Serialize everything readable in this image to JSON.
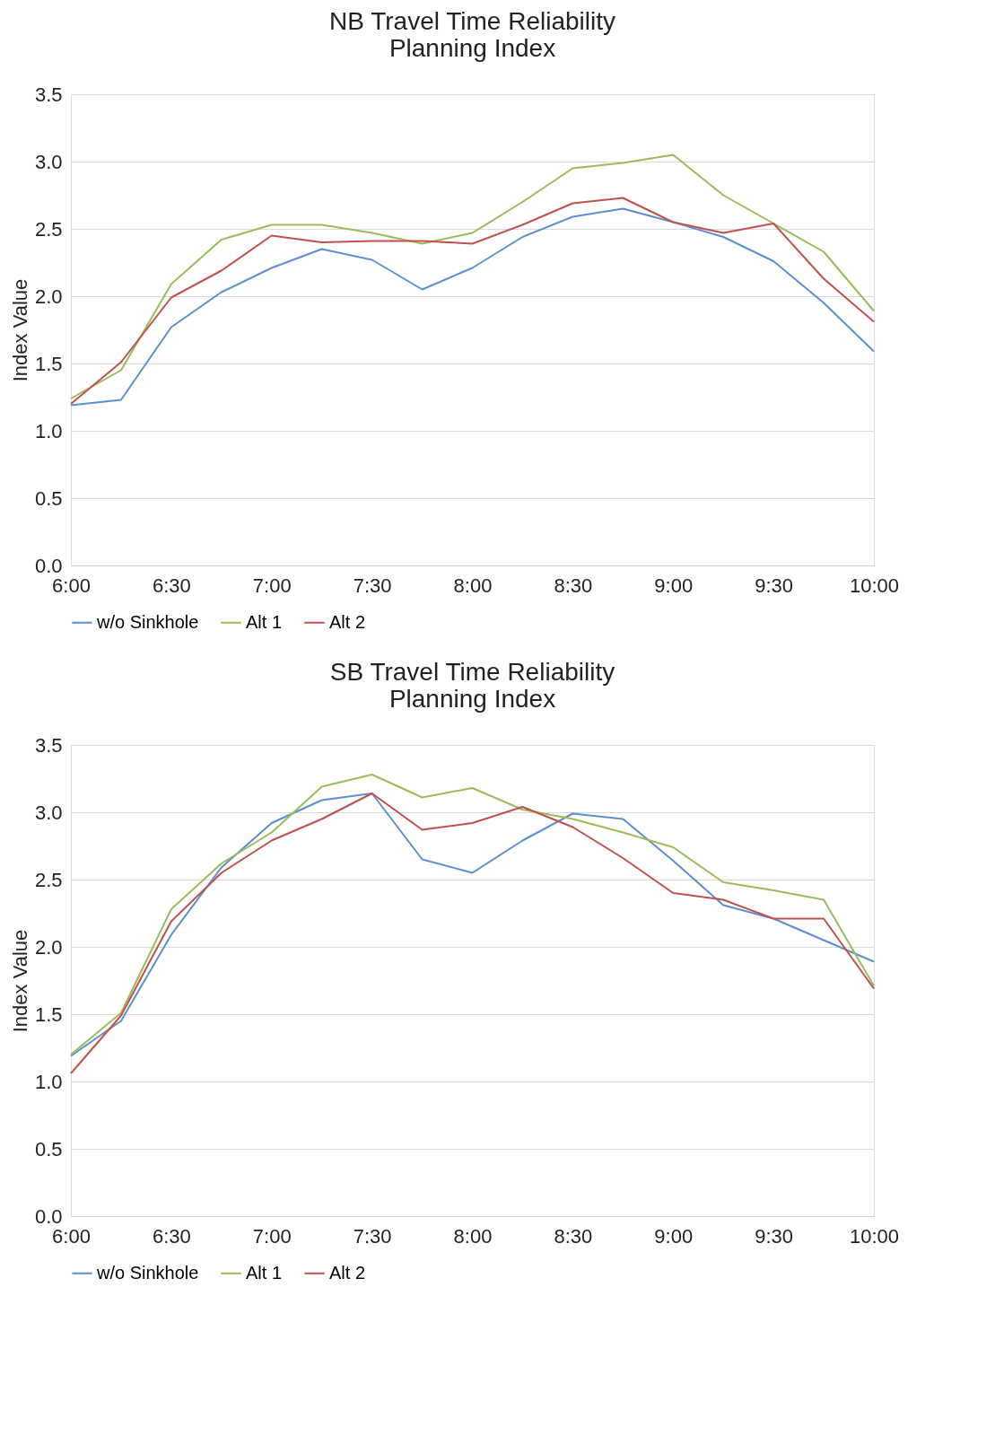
{
  "chart_data": [
    {
      "type": "line",
      "title": "NB Travel Time Reliability\nPlanning Index",
      "ylabel": "Index Value",
      "x": [
        6,
        6.25,
        6.5,
        6.75,
        7,
        7.25,
        7.5,
        7.75,
        8,
        8.25,
        8.5,
        8.75,
        9,
        9.25,
        9.5,
        9.75,
        10
      ],
      "xlim": [
        6,
        10
      ],
      "xticks": [
        {
          "value": 6,
          "label": "6:00"
        },
        {
          "value": 6.5,
          "label": "6:30"
        },
        {
          "value": 7,
          "label": "7:00"
        },
        {
          "value": 7.5,
          "label": "7:30"
        },
        {
          "value": 8,
          "label": "8:00"
        },
        {
          "value": 8.5,
          "label": "8:30"
        },
        {
          "value": 9,
          "label": "9:00"
        },
        {
          "value": 9.5,
          "label": "9:30"
        },
        {
          "value": 10,
          "label": "10:00"
        }
      ],
      "ylim": [
        0,
        3.5
      ],
      "yticks": [
        {
          "value": 0,
          "label": "0.0"
        },
        {
          "value": 0.5,
          "label": "0.5"
        },
        {
          "value": 1,
          "label": "1.0"
        },
        {
          "value": 1.5,
          "label": "1.5"
        },
        {
          "value": 2,
          "label": "2.0"
        },
        {
          "value": 2.5,
          "label": "2.5"
        },
        {
          "value": 3,
          "label": "3.0"
        },
        {
          "value": 3.5,
          "label": "3.5"
        }
      ],
      "grid": "y",
      "legend": "bottom",
      "marker": "none",
      "line_style": "solid",
      "series": [
        {
          "name": "w/o Sinkhole",
          "color": "#5b8fd0",
          "values": [
            1.19,
            1.23,
            1.77,
            2.03,
            2.21,
            2.35,
            2.27,
            2.05,
            2.21,
            2.44,
            2.59,
            2.65,
            2.55,
            2.44,
            2.26,
            1.95,
            1.59
          ]
        },
        {
          "name": "Alt 1",
          "color": "#9bbb59",
          "values": [
            1.24,
            1.45,
            2.09,
            2.42,
            2.53,
            2.53,
            2.47,
            2.39,
            2.47,
            2.7,
            2.95,
            2.99,
            3.05,
            2.75,
            2.54,
            2.33,
            1.89
          ]
        },
        {
          "name": "Alt 2",
          "color": "#c0504d",
          "values": [
            1.2,
            1.51,
            1.99,
            2.19,
            2.45,
            2.4,
            2.41,
            2.41,
            2.39,
            2.53,
            2.69,
            2.73,
            2.55,
            2.47,
            2.54,
            2.13,
            1.81
          ]
        }
      ]
    },
    {
      "type": "line",
      "title": "SB Travel Time Reliability\nPlanning Index",
      "ylabel": "Index Value",
      "x": [
        6,
        6.25,
        6.5,
        6.75,
        7,
        7.25,
        7.5,
        7.75,
        8,
        8.25,
        8.5,
        8.75,
        9,
        9.25,
        9.5,
        9.75,
        10
      ],
      "xlim": [
        6,
        10
      ],
      "xticks": [
        {
          "value": 6,
          "label": "6:00"
        },
        {
          "value": 6.5,
          "label": "6:30"
        },
        {
          "value": 7,
          "label": "7:00"
        },
        {
          "value": 7.5,
          "label": "7:30"
        },
        {
          "value": 8,
          "label": "8:00"
        },
        {
          "value": 8.5,
          "label": "8:30"
        },
        {
          "value": 9,
          "label": "9:00"
        },
        {
          "value": 9.5,
          "label": "9:30"
        },
        {
          "value": 10,
          "label": "10:00"
        }
      ],
      "ylim": [
        0,
        3.5
      ],
      "yticks": [
        {
          "value": 0,
          "label": "0.0"
        },
        {
          "value": 0.5,
          "label": "0.5"
        },
        {
          "value": 1,
          "label": "1.0"
        },
        {
          "value": 1.5,
          "label": "1.5"
        },
        {
          "value": 2,
          "label": "2.0"
        },
        {
          "value": 2.5,
          "label": "2.5"
        },
        {
          "value": 3,
          "label": "3.0"
        },
        {
          "value": 3.5,
          "label": "3.5"
        }
      ],
      "grid": "y",
      "legend": "bottom",
      "marker": "none",
      "line_style": "solid",
      "series": [
        {
          "name": "w/o Sinkhole",
          "color": "#5b8fd0",
          "values": [
            1.19,
            1.45,
            2.09,
            2.59,
            2.92,
            3.09,
            3.14,
            2.65,
            2.55,
            2.79,
            2.99,
            2.95,
            2.64,
            2.31,
            2.21,
            2.05,
            1.89
          ]
        },
        {
          "name": "Alt 1",
          "color": "#9bbb59",
          "values": [
            1.2,
            1.51,
            2.28,
            2.62,
            2.85,
            3.19,
            3.28,
            3.11,
            3.18,
            3.02,
            2.95,
            2.85,
            2.74,
            2.48,
            2.42,
            2.35,
            1.71
          ]
        },
        {
          "name": "Alt 2",
          "color": "#c0504d",
          "values": [
            1.06,
            1.49,
            2.19,
            2.55,
            2.79,
            2.95,
            3.14,
            2.87,
            2.92,
            3.04,
            2.89,
            2.66,
            2.4,
            2.35,
            2.21,
            2.21,
            1.69
          ]
        }
      ]
    }
  ]
}
